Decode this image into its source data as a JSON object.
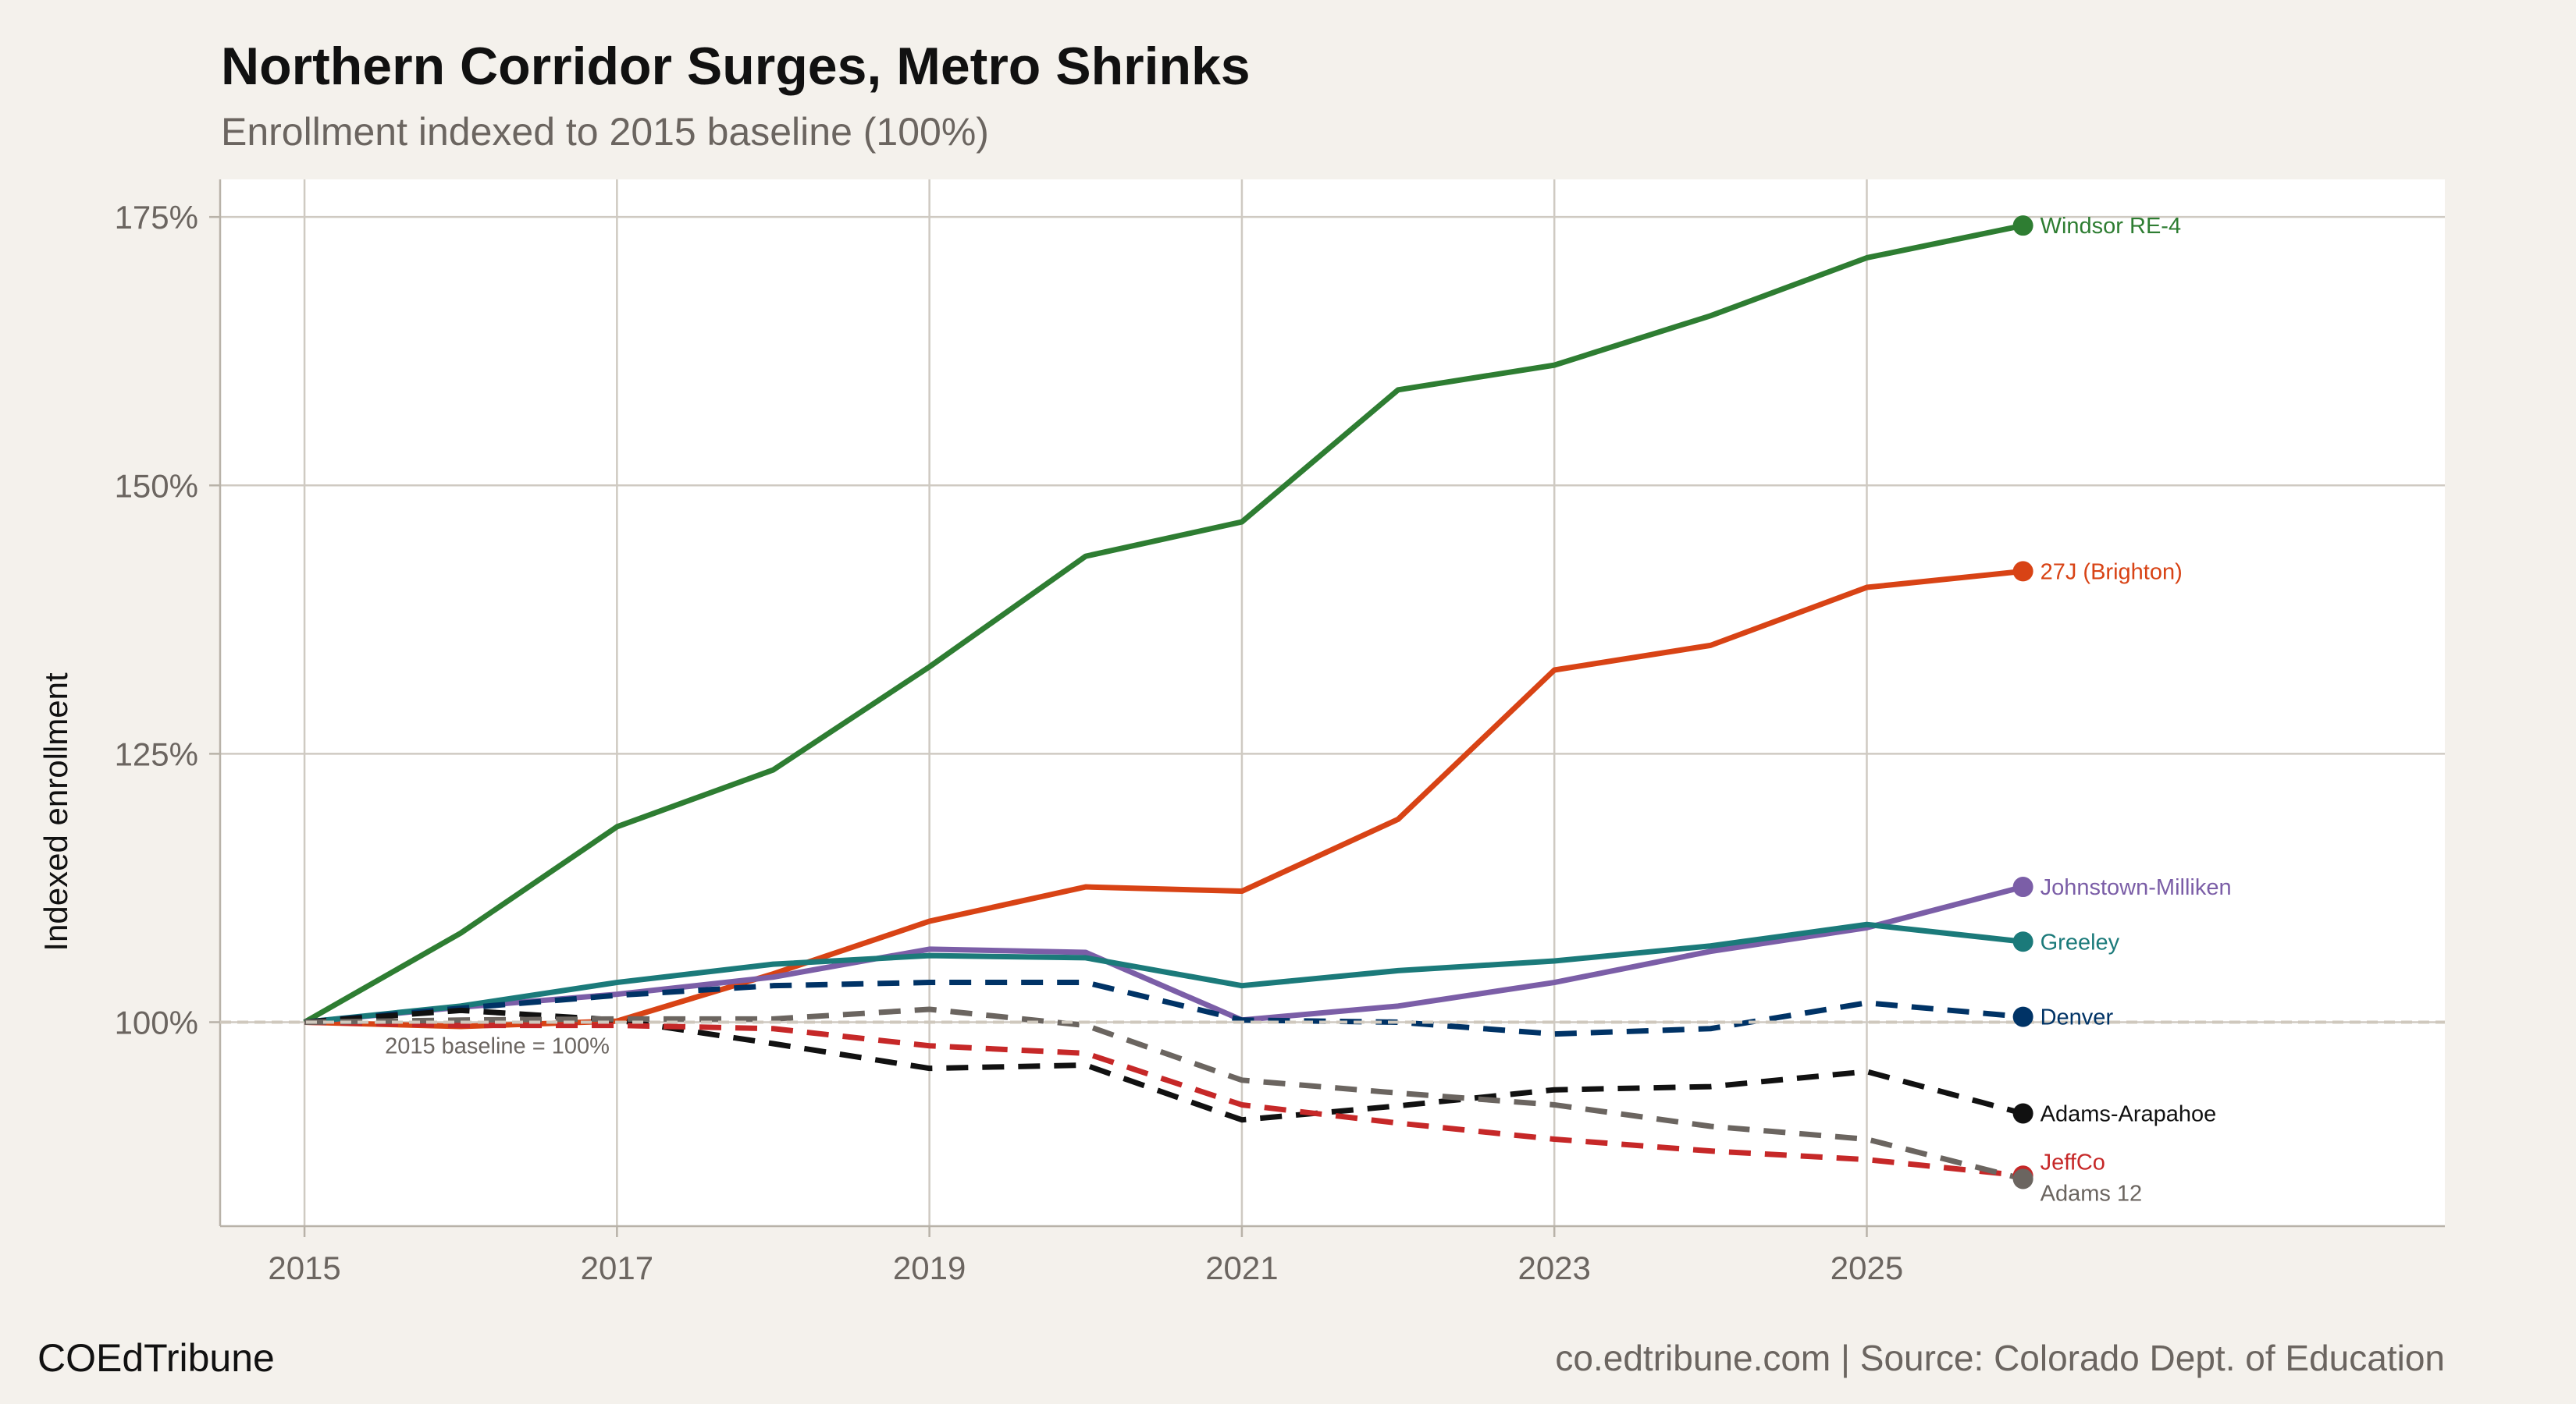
{
  "chart_data": {
    "type": "line",
    "title": "Northern Corridor Surges, Metro Shrinks",
    "subtitle": "Enrollment indexed to 2015 baseline (100%)",
    "xlabel": "",
    "ylabel": "Indexed enrollment",
    "x": [
      2015,
      2016,
      2017,
      2018,
      2019,
      2020,
      2021,
      2022,
      2023,
      2024,
      2025,
      2026
    ],
    "xticks": [
      "2015",
      "2017",
      "2019",
      "2021",
      "2023",
      "2025"
    ],
    "yticks": [
      "100%",
      "125%",
      "150%",
      "175%"
    ],
    "xlim": [
      2014.46,
      2028.7
    ],
    "ylim": [
      81,
      178.5
    ],
    "grid": true,
    "legend": "direct labels at line ends",
    "baseline_annotation": "2015 baseline = 100%",
    "series": [
      {
        "name": "Windsor RE-4",
        "color": "#2e7d32",
        "dash": false,
        "values": [
          100,
          108.3,
          118.2,
          123.5,
          133.1,
          143.4,
          146.6,
          158.9,
          161.2,
          165.8,
          171.2,
          174.2
        ]
      },
      {
        "name": "27J (Brighton)",
        "color": "#d84315",
        "dash": false,
        "values": [
          100,
          99.6,
          100.1,
          104.5,
          109.4,
          112.6,
          112.2,
          118.9,
          132.8,
          135.1,
          140.5,
          142.0
        ]
      },
      {
        "name": "Johnstown-Milliken",
        "color": "#7b5ea7",
        "dash": false,
        "values": [
          100,
          101.4,
          102.6,
          104.2,
          106.8,
          106.5,
          100.2,
          101.5,
          103.7,
          106.6,
          108.8,
          112.6
        ]
      },
      {
        "name": "Greeley",
        "color": "#1b7a7a",
        "dash": false,
        "values": [
          100,
          101.5,
          103.7,
          105.4,
          106.2,
          106.0,
          103.4,
          104.8,
          105.7,
          107.1,
          109.1,
          107.5
        ]
      },
      {
        "name": "Denver",
        "color": "#003366",
        "dash": true,
        "values": [
          100,
          101.3,
          102.5,
          103.4,
          103.7,
          103.7,
          100.2,
          100.0,
          98.9,
          99.4,
          101.8,
          100.5
        ]
      },
      {
        "name": "Adams-Arapahoe",
        "color": "#111111",
        "dash": true,
        "values": [
          100,
          101.1,
          100.2,
          98.0,
          95.7,
          96.0,
          90.9,
          92.2,
          93.7,
          94.0,
          95.4,
          91.5
        ]
      },
      {
        "name": "JeffCo",
        "color": "#c62828",
        "dash": true,
        "values": [
          100,
          99.7,
          99.7,
          99.4,
          97.8,
          97.1,
          92.3,
          90.6,
          89.1,
          88.0,
          87.2,
          85.7
        ]
      },
      {
        "name": "Adams 12",
        "color": "#6b6560",
        "dash": true,
        "values": [
          100,
          100.2,
          100.3,
          100.3,
          101.2,
          99.7,
          94.6,
          93.4,
          92.3,
          90.3,
          89.1,
          85.4
        ]
      }
    ]
  },
  "footer": {
    "brand": "COEdTribune",
    "source": "co.edtribune.com | Source: Colorado Dept. of Education"
  }
}
